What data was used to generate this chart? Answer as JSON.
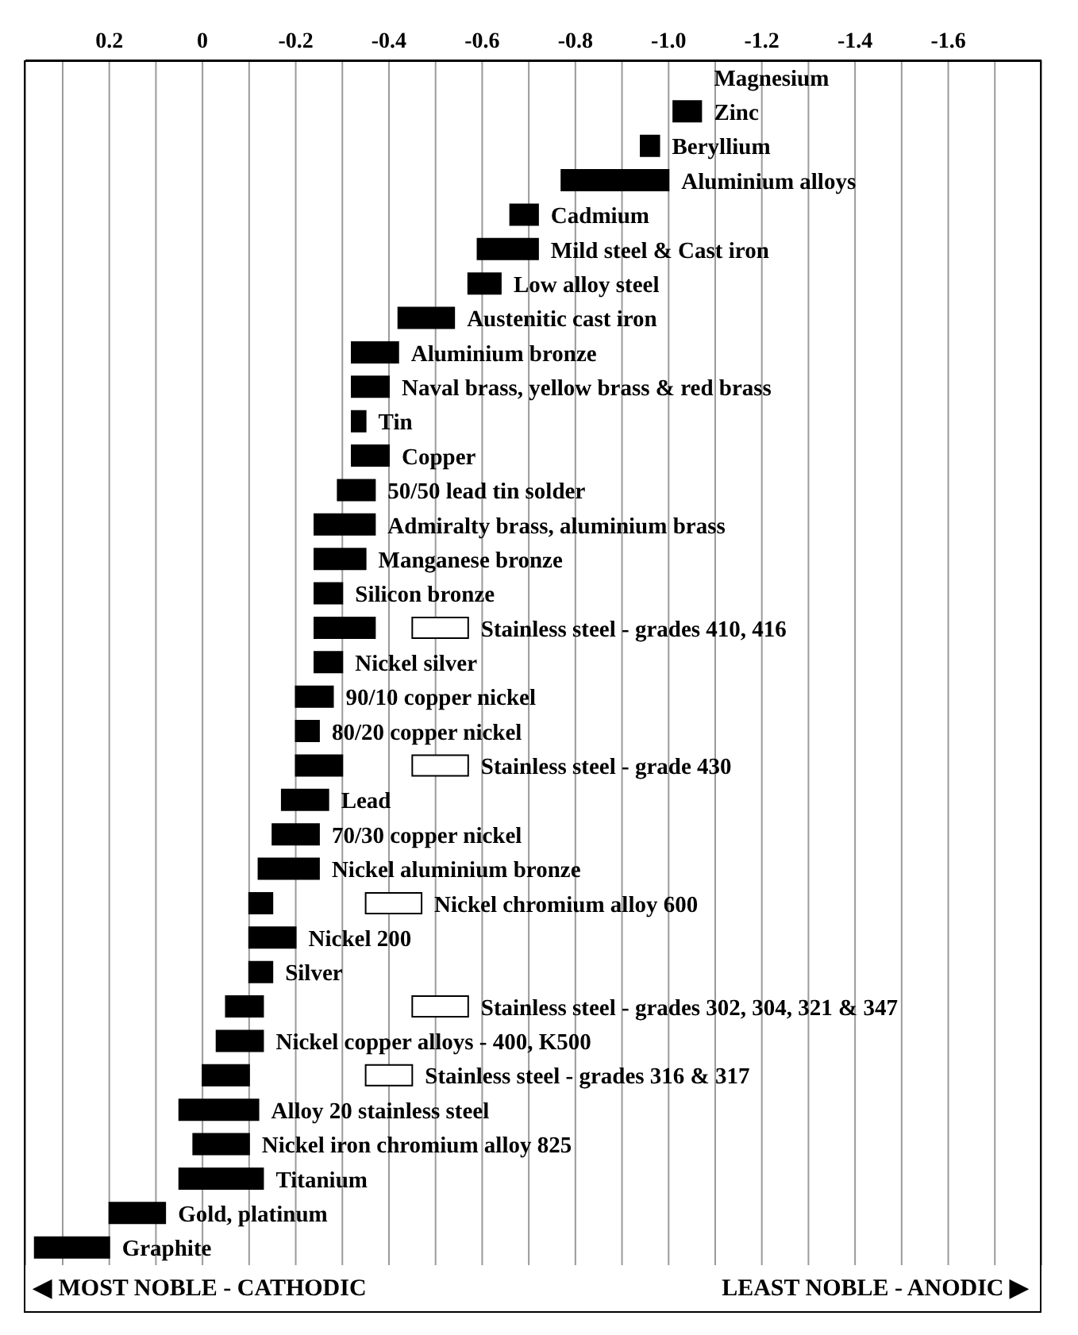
{
  "chart_data": {
    "type": "bar",
    "orientation": "horizontal",
    "categories": [
      "Magnesium",
      "Zinc",
      "Beryllium",
      "Aluminium alloys",
      "Cadmium",
      "Mild steel & Cast iron",
      "Low alloy steel",
      "Austenitic cast iron",
      "Aluminium bronze",
      "Naval brass, yellow brass & red brass",
      "Tin",
      "Copper",
      "50/50 lead tin solder",
      "Admiralty brass, aluminium brass",
      "Manganese bronze",
      "Silicon bronze",
      "Stainless steel - grades 410, 416",
      "Nickel silver",
      "90/10 copper nickel",
      "80/20 copper nickel",
      "Stainless steel - grade 430",
      "Lead",
      "70/30 copper nickel",
      "Nickel aluminium bronze",
      "Nickel chromium alloy 600",
      "Nickel 200",
      "Silver",
      "Stainless steel - grades 302, 304, 321 & 347",
      "Nickel copper alloys - 400, K500",
      "Stainless steel - grades 316 & 317",
      "Alloy 20 stainless steel",
      "Nickel iron chromium alloy 825",
      "Titanium",
      "Gold, platinum",
      "Graphite"
    ],
    "series": [
      {
        "color": "#000000",
        "base": [
          null,
          -1.01,
          -0.94,
          -0.77,
          -0.66,
          -0.59,
          -0.57,
          -0.42,
          -0.32,
          -0.32,
          -0.32,
          -0.32,
          -0.29,
          -0.24,
          -0.24,
          -0.24,
          -0.24,
          -0.24,
          -0.2,
          -0.2,
          -0.2,
          -0.17,
          -0.15,
          -0.12,
          -0.1,
          -0.1,
          -0.1,
          -0.05,
          -0.03,
          0,
          0.05,
          0.02,
          0.05,
          0.2,
          0.36
        ],
        "values": [
          null,
          -0.06,
          -0.04,
          -0.23,
          -0.06,
          -0.13,
          -0.07,
          -0.12,
          -0.1,
          -0.08,
          -0.03,
          -0.08,
          -0.08,
          -0.13,
          -0.11,
          -0.06,
          -0.13,
          -0.06,
          -0.08,
          -0.05,
          -0.1,
          -0.1,
          -0.1,
          -0.13,
          -0.05,
          -0.1,
          -0.05,
          -0.08,
          -0.1,
          -0.1,
          -0.17,
          -0.12,
          -0.18,
          -0.12,
          -0.16
        ]
      },
      {
        "color": "#ffffff",
        "base": [
          null,
          null,
          null,
          null,
          null,
          null,
          null,
          null,
          null,
          null,
          null,
          null,
          null,
          null,
          null,
          null,
          -0.45,
          null,
          null,
          null,
          -0.45,
          null,
          null,
          null,
          -0.35,
          null,
          null,
          -0.45,
          null,
          -0.35,
          null,
          null,
          null,
          null,
          null
        ],
        "values": [
          null,
          null,
          null,
          null,
          null,
          null,
          null,
          null,
          null,
          null,
          null,
          null,
          null,
          null,
          null,
          null,
          -0.12,
          null,
          null,
          null,
          -0.12,
          null,
          null,
          null,
          -0.12,
          null,
          null,
          -0.12,
          null,
          -0.1,
          null,
          null,
          null,
          null,
          null
        ]
      }
    ],
    "xlim": [
      0.38,
      -1.8
    ],
    "xticks": [
      {
        "value": 0.3,
        "label": null
      },
      0.2,
      {
        "value": 0.1,
        "label": null
      },
      0,
      {
        "value": -0.1,
        "label": null
      },
      -0.2,
      {
        "value": -0.3,
        "label": null
      },
      -0.4,
      {
        "value": -0.5,
        "label": null
      },
      -0.6,
      {
        "value": -0.7,
        "label": null
      },
      -0.8,
      {
        "value": -0.9,
        "label": null
      },
      {
        "value": -1.0,
        "label": "-1.0"
      },
      {
        "value": -1.1,
        "label": null
      },
      -1.2,
      {
        "value": -1.3,
        "label": null
      },
      -1.4,
      {
        "value": -1.5,
        "label": null
      },
      -1.6,
      {
        "value": -1.7,
        "label": null
      }
    ],
    "grid": "x",
    "annotations": [
      "◀ MOST NOBLE - CATHODIC",
      "LEAST NOBLE - ANODIC ▶"
    ]
  }
}
